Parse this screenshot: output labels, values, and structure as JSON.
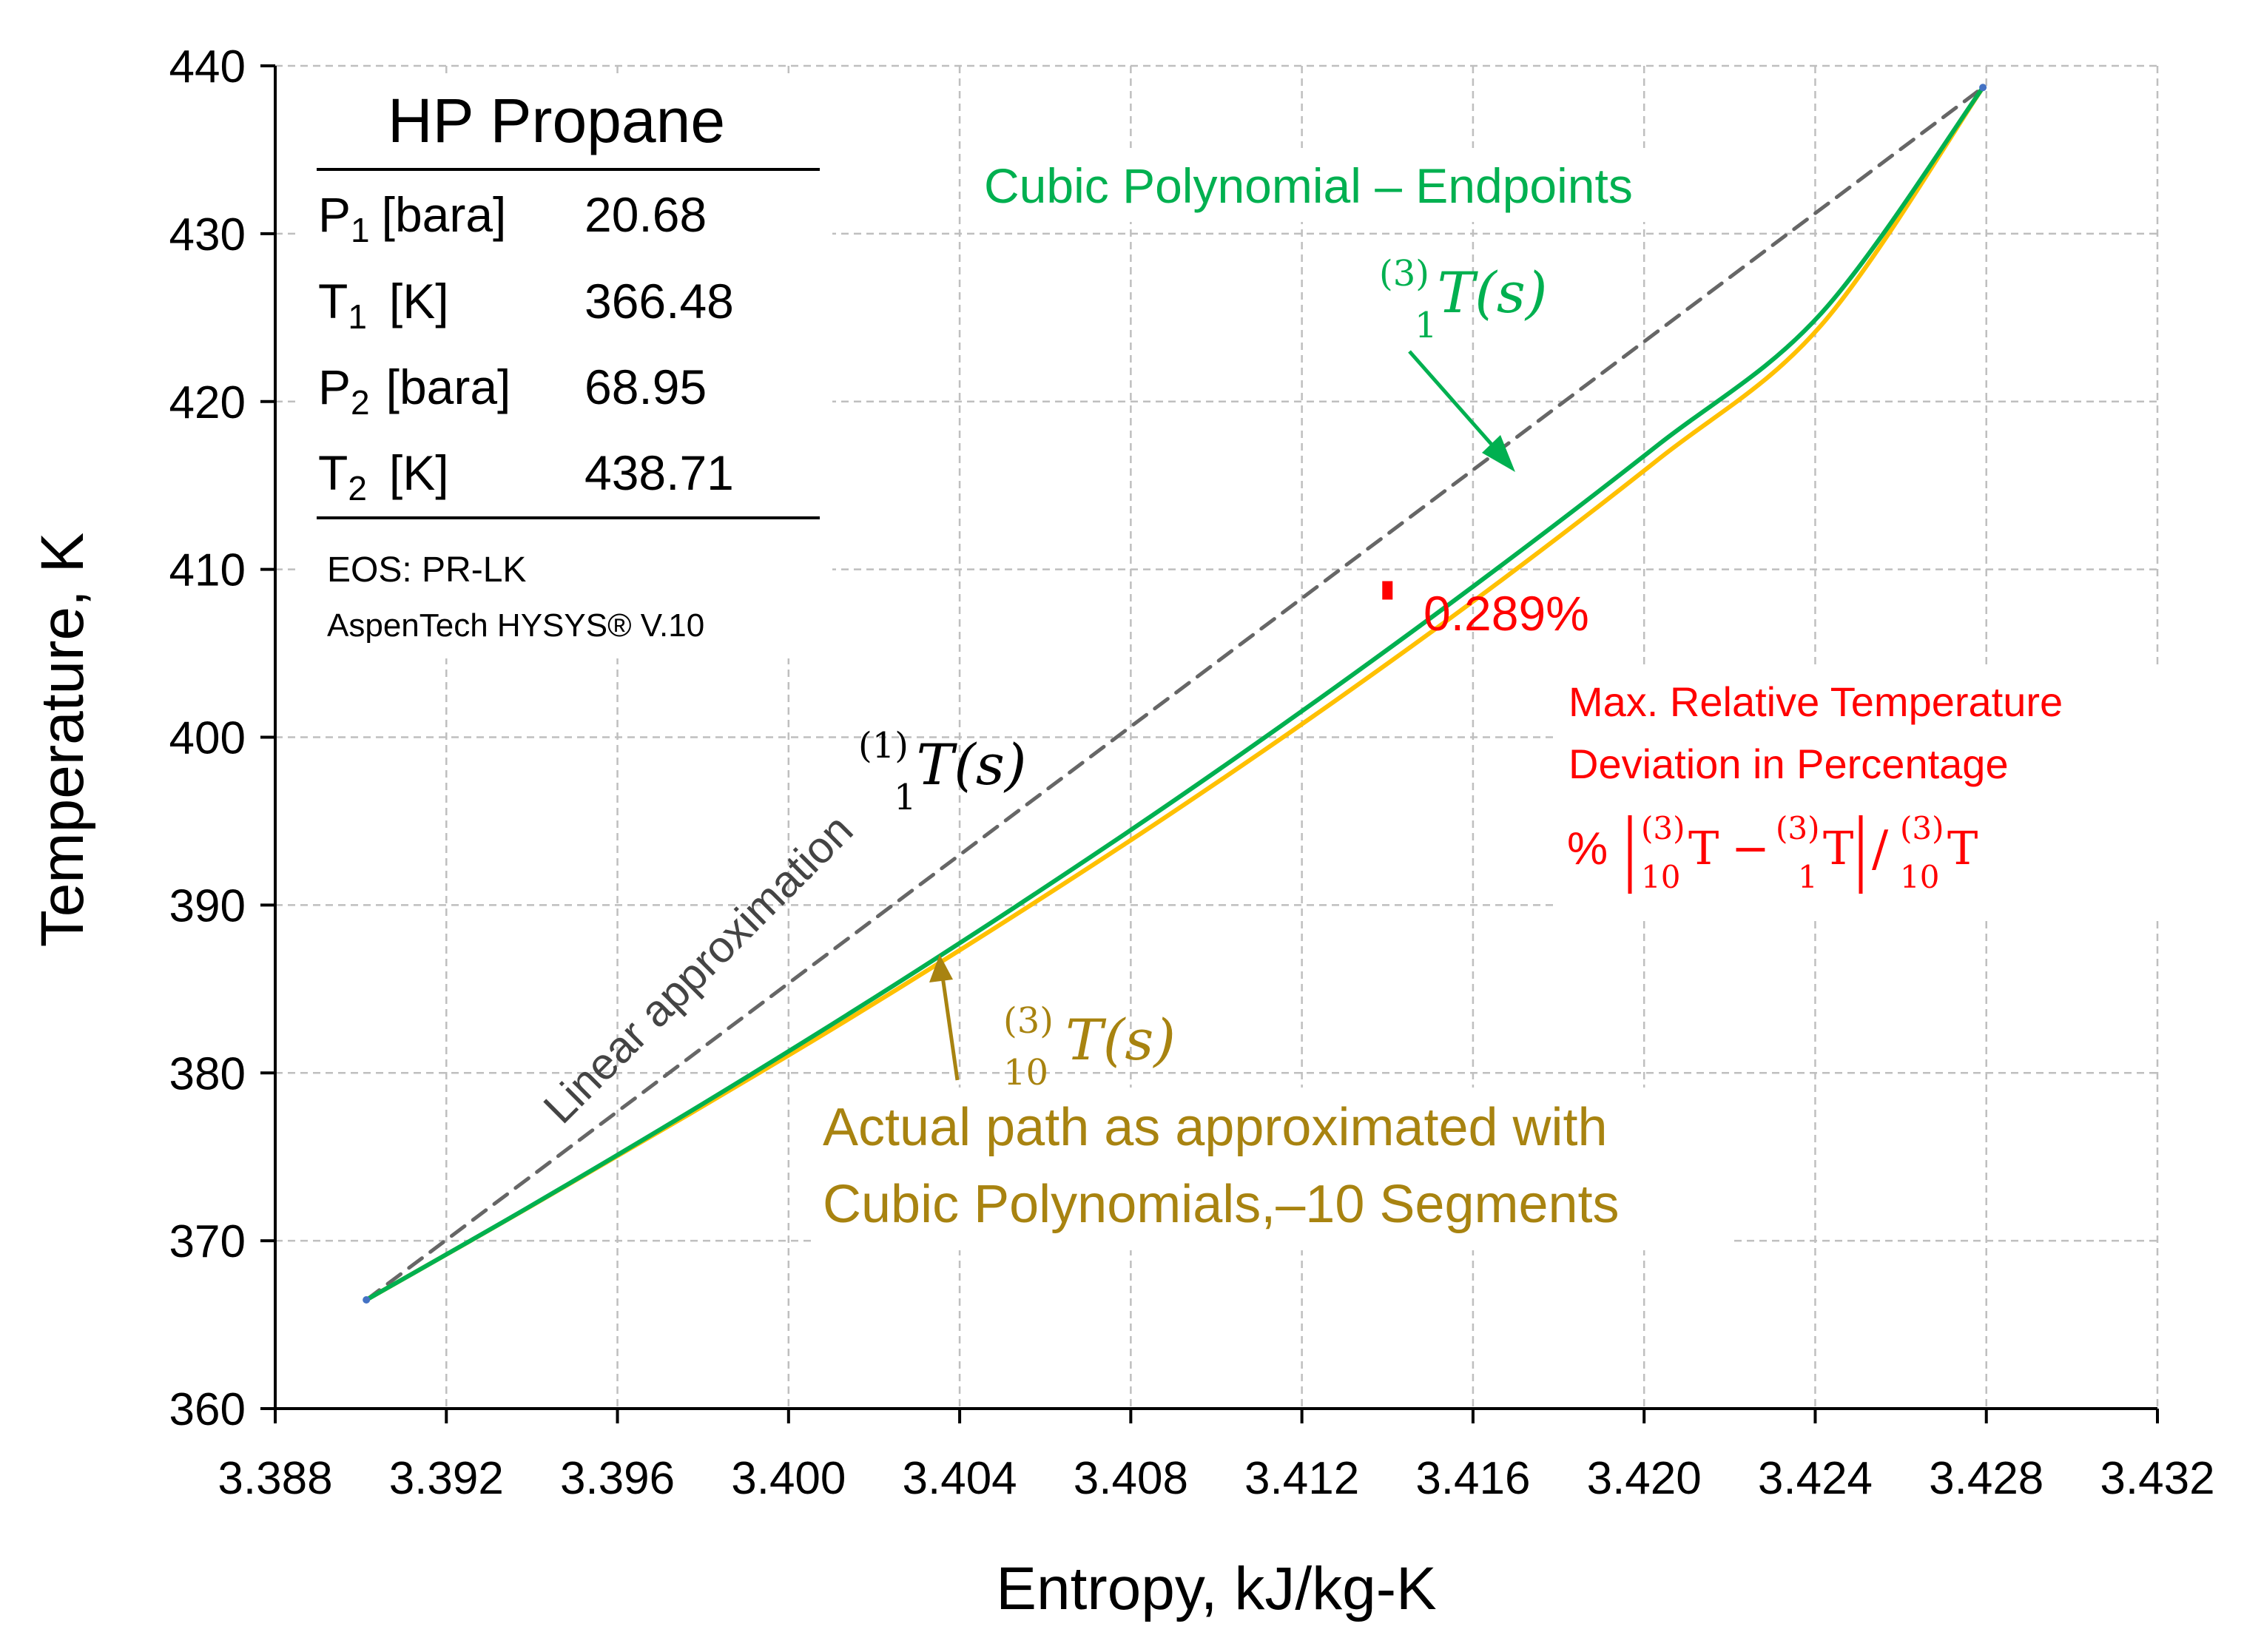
{
  "chart_data": {
    "type": "line",
    "xlabel": "Entropy, kJ/kg-K",
    "ylabel": "Temperature, K",
    "xlim": [
      3.388,
      3.432
    ],
    "ylim": [
      360,
      440
    ],
    "x_ticks": [
      3.388,
      3.392,
      3.396,
      3.4,
      3.404,
      3.408,
      3.412,
      3.416,
      3.42,
      3.424,
      3.428,
      3.432
    ],
    "x_tick_labels": [
      "3.388",
      "3.392",
      "3.396",
      "3.400",
      "3.404",
      "3.408",
      "3.412",
      "3.416",
      "3.420",
      "3.424",
      "3.428",
      "3.432"
    ],
    "y_ticks": [
      360,
      370,
      380,
      390,
      400,
      410,
      420,
      430,
      440
    ],
    "y_tick_labels": [
      "360",
      "370",
      "380",
      "390",
      "400",
      "410",
      "420",
      "430",
      "440"
    ],
    "grid": true,
    "series": [
      {
        "name": "Linear approximation",
        "style": "dashed",
        "color": "#666666",
        "x": [
          3.39013,
          3.42792
        ],
        "y": [
          366.48,
          438.71
        ]
      },
      {
        "name": "Cubic Polynomial – Endpoints",
        "style": "solid",
        "color": "#00b050",
        "x": [
          3.39013,
          3.39391,
          3.39769,
          3.40147,
          3.40525,
          3.40903,
          3.4128,
          3.41658,
          3.42036,
          3.42414,
          3.42792
        ],
        "y": [
          366.48,
          371.98,
          377.69,
          383.62,
          389.81,
          396.26,
          403.01,
          410.08,
          417.48,
          425.25,
          438.71
        ]
      },
      {
        "name": "Actual path (Cubic Polynomials, 10 Segments)",
        "style": "solid",
        "color": "#ffc000",
        "x": [
          3.39013,
          3.39391,
          3.39769,
          3.40147,
          3.40525,
          3.40903,
          3.4128,
          3.41658,
          3.42036,
          3.42414,
          3.42792
        ],
        "y": [
          366.48,
          371.96,
          377.56,
          383.31,
          389.33,
          395.61,
          402.21,
          409.19,
          416.61,
          424.54,
          438.71
        ]
      }
    ],
    "endpoint_markers": [
      {
        "x": 3.39013,
        "y": 366.48,
        "color": "#4472c4"
      },
      {
        "x": 3.42792,
        "y": 438.71,
        "color": "#4472c4"
      }
    ],
    "max_deviation": {
      "x": 3.414,
      "y_low": 408.2,
      "y_high": 409.3,
      "color": "#ff0000"
    },
    "annotations": {
      "cubic_title": "Cubic Polynomial – Endpoints",
      "cubic_pre": "(3)",
      "cubic_sub": "1",
      "cubic_func": "T(s)",
      "linear_pre": "(1)",
      "linear_sub": "1",
      "linear_func": "T(s)",
      "linear_label": "Linear approximation",
      "actual_pre": "(3)",
      "actual_sub": "10",
      "actual_func": "T(s)",
      "actual_line1": "Actual path as approximated with",
      "actual_line2": "Cubic Polynomials,–10 Segments",
      "deviation_value": "0.289%",
      "deviation_line1": "Max. Relative Temperature",
      "deviation_line2": "Deviation in Percentage",
      "formula_percent": "%",
      "formula_sup": "(3)",
      "formula_sub_10": "10",
      "formula_sub_1": "1",
      "formula_T": "T",
      "formula_minus": "−",
      "formula_slash": "/"
    },
    "info_box": {
      "title": "HP Propane",
      "rows": [
        {
          "sym": "P",
          "sub": "1",
          "unit": "[bara]",
          "value": "20.68"
        },
        {
          "sym": "T",
          "sub": "1",
          "unit": "[K]",
          "value": "366.48"
        },
        {
          "sym": "P",
          "sub": "2",
          "unit": "[bara]",
          "value": "68.95"
        },
        {
          "sym": "T",
          "sub": "2",
          "unit": "[K]",
          "value": "438.71"
        }
      ],
      "eos": "EOS: PR-LK",
      "software": "AspenTech HYSYS® V.10"
    },
    "colors": {
      "cubic": "#00b050",
      "actual": "#ffc000",
      "actual_text": "#a88310",
      "linear": "#666666",
      "deviation": "#ff0000"
    }
  }
}
